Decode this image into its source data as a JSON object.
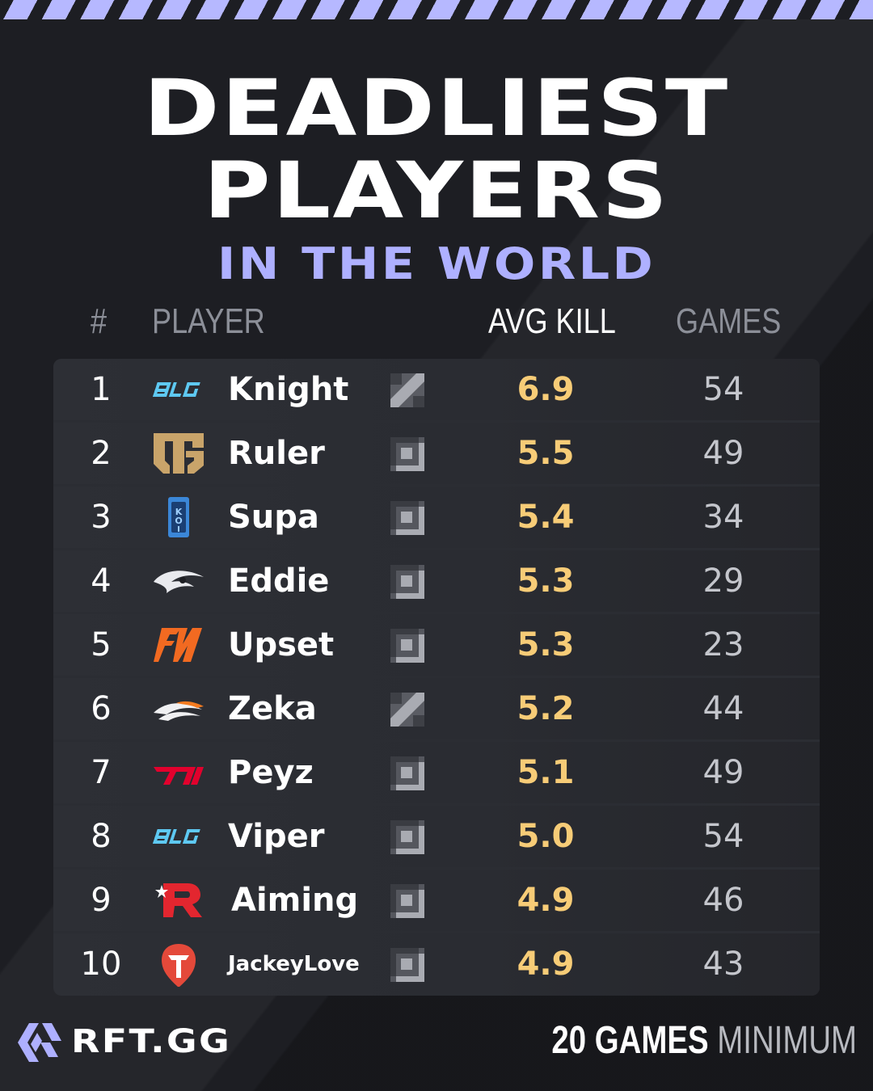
{
  "title": {
    "line1": "DEADLIEST",
    "line2": "PLAYERS",
    "subtitle": "IN THE WORLD"
  },
  "columns": {
    "rank": "#",
    "player": "PLAYER",
    "avg_kill": "AVG KILL",
    "games": "GAMES"
  },
  "colors": {
    "accent": "#aeb0ff",
    "avg_kill": "#f7cc77",
    "background": "#1d1e23"
  },
  "rows": [
    {
      "rank": "1",
      "team_logo": "blg-logo",
      "player": "Knight",
      "role_icon": "mid-lane-icon",
      "avg_kill": "6.9",
      "games": "54"
    },
    {
      "rank": "2",
      "team_logo": "gen-g-logo",
      "player": "Ruler",
      "role_icon": "bot-lane-icon",
      "avg_kill": "5.5",
      "games": "49"
    },
    {
      "rank": "3",
      "team_logo": "koi-logo",
      "player": "Supa",
      "role_icon": "bot-lane-icon",
      "avg_kill": "5.4",
      "games": "34"
    },
    {
      "rank": "4",
      "team_logo": "team-secret-logo",
      "player": "Eddie",
      "role_icon": "bot-lane-icon",
      "avg_kill": "5.3",
      "games": "29"
    },
    {
      "rank": "5",
      "team_logo": "fnatic-logo",
      "player": "Upset",
      "role_icon": "bot-lane-icon",
      "avg_kill": "5.3",
      "games": "23"
    },
    {
      "rank": "6",
      "team_logo": "hanwha-logo",
      "player": "Zeka",
      "role_icon": "mid-lane-icon",
      "avg_kill": "5.2",
      "games": "44"
    },
    {
      "rank": "7",
      "team_logo": "t1-logo",
      "player": "Peyz",
      "role_icon": "bot-lane-icon",
      "avg_kill": "5.1",
      "games": "49"
    },
    {
      "rank": "8",
      "team_logo": "blg-logo",
      "player": "Viper",
      "role_icon": "bot-lane-icon",
      "avg_kill": "5.0",
      "games": "54"
    },
    {
      "rank": "9",
      "team_logo": "kt-rolster-logo",
      "player": "Aiming",
      "role_icon": "bot-lane-icon",
      "avg_kill": "4.9",
      "games": "46"
    },
    {
      "rank": "10",
      "team_logo": "top-esports-logo",
      "player": "JackeyLove",
      "role_icon": "bot-lane-icon",
      "avg_kill": "4.9",
      "games": "43"
    }
  ],
  "footer": {
    "brand": "RFT.GG",
    "brand_icon": "rft-logo-icon",
    "note_strong": "20 GAMES",
    "note_weak": "MINIMUM"
  }
}
